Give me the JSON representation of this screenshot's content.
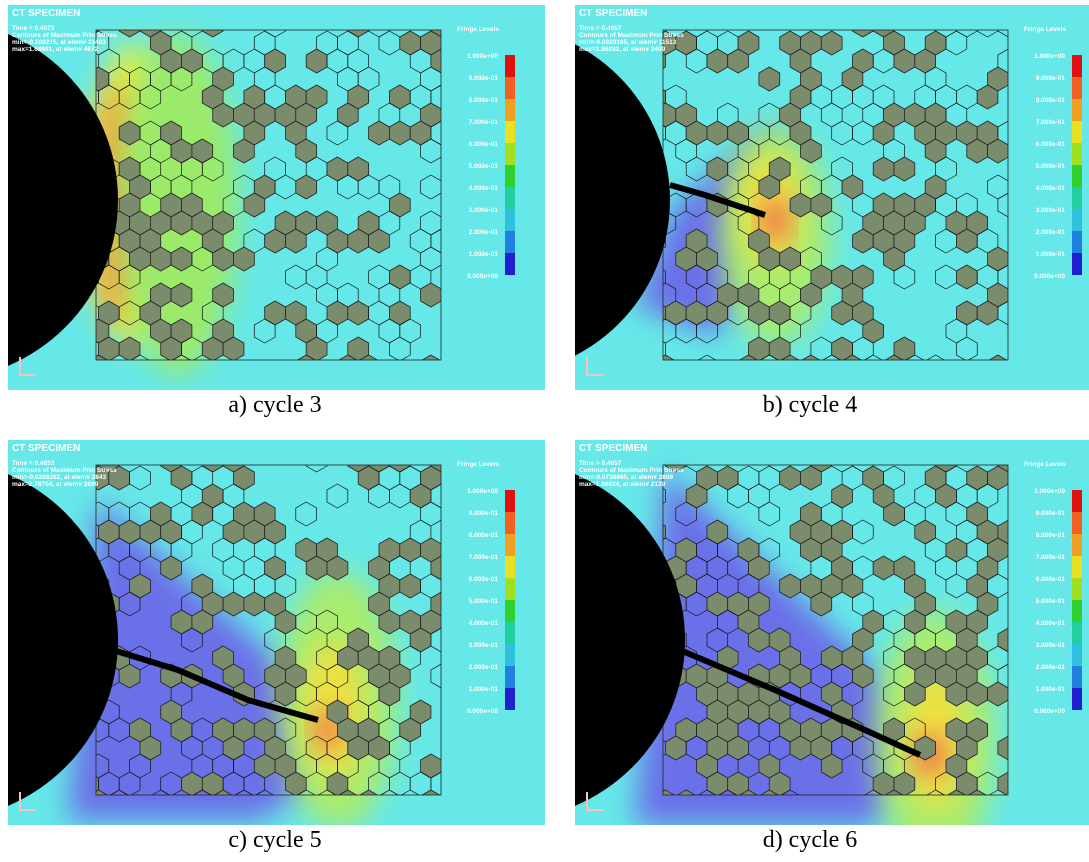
{
  "fringe_title": "Fringe Levels",
  "fringe_levels": [
    "1.000e+00",
    "9.000e-01",
    "8.000e-01",
    "7.000e-01",
    "6.000e-01",
    "5.000e-01",
    "4.000e-01",
    "3.000e-01",
    "2.000e-01",
    "1.000e-01",
    "0.000e+00"
  ],
  "panels": [
    {
      "title": "CT SPECIMEN",
      "time": "Time = 0.4673",
      "contour": "Contours of Maximum Prin Stress",
      "min": "min=-0.109215, at elem# 11403",
      "max": "max=1.68681, at elem# 4672",
      "caption": "a) cycle 3"
    },
    {
      "title": "CT SPECIMEN",
      "time": "Time = 0.4657",
      "contour": "Contours of Maximum Prin Stress",
      "min": "min=-0.0929165, at elem# 11513",
      "max": "max=1.86032, at elem# 3409",
      "caption": "b) cycle 4"
    },
    {
      "title": "CT SPECIMEN",
      "time": "Time = 0.4653",
      "contour": "Contours of Maximum Prin Stress",
      "min": "min=-0.0208262, at elem# 2843",
      "max": "max=2.78704, at elem# 2699",
      "caption": "c) cycle 5"
    },
    {
      "title": "CT SPECIMEN",
      "time": "Time = 0.4657",
      "contour": "Contours of Maximum Prin Stress",
      "min": "min=-0.0738665, at elem# 2899",
      "max": "max=1.89824, at elem# 2139",
      "caption": "d) cycle 6"
    }
  ]
}
